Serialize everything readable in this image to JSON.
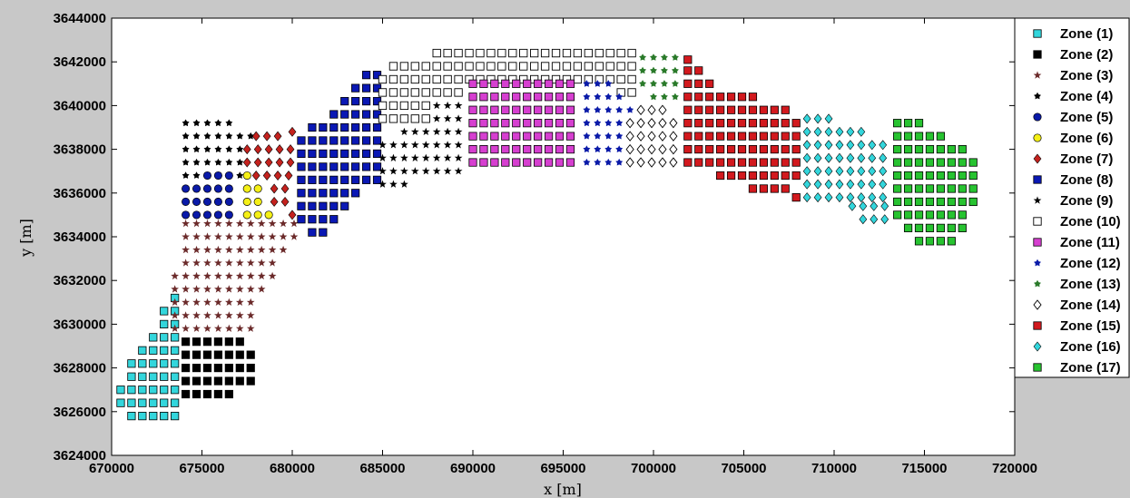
{
  "chart_data": {
    "type": "scatter",
    "title": "",
    "xlabel": "x [m]",
    "ylabel": "y [m]",
    "xlim": [
      670000,
      720000
    ],
    "ylim": [
      3624000,
      3644000
    ],
    "xticks": [
      670000,
      675000,
      680000,
      685000,
      690000,
      695000,
      700000,
      705000,
      710000,
      715000,
      720000
    ],
    "yticks": [
      3624000,
      3626000,
      3628000,
      3630000,
      3632000,
      3634000,
      3636000,
      3638000,
      3640000,
      3642000,
      3644000
    ],
    "grid": false,
    "legend_position": "right",
    "grid_spacing": 600,
    "series": [
      {
        "name": "Zone (1)",
        "marker": "square",
        "color": "#33d6dc",
        "rows": [
          {
            "y": 3625800,
            "x0": 671100,
            "x1": 673500
          },
          {
            "y": 3626400,
            "x0": 670500,
            "x1": 673500
          },
          {
            "y": 3627000,
            "x0": 670500,
            "x1": 673500
          },
          {
            "y": 3627600,
            "x0": 671100,
            "x1": 673500
          },
          {
            "y": 3628200,
            "x0": 671100,
            "x1": 673500
          },
          {
            "y": 3628800,
            "x0": 671700,
            "x1": 673500
          },
          {
            "y": 3629400,
            "x0": 672300,
            "x1": 673500
          },
          {
            "y": 3630000,
            "x0": 672900,
            "x1": 673500
          },
          {
            "y": 3630600,
            "x0": 672900,
            "x1": 673500
          },
          {
            "y": 3631200,
            "x0": 673500,
            "x1": 673500
          }
        ]
      },
      {
        "name": "Zone (2)",
        "marker": "square",
        "color": "#000000",
        "rows": [
          {
            "y": 3626800,
            "x0": 674100,
            "x1": 676500
          },
          {
            "y": 3627400,
            "x0": 674100,
            "x1": 677700
          },
          {
            "y": 3628000,
            "x0": 674100,
            "x1": 677700
          },
          {
            "y": 3628600,
            "x0": 674100,
            "x1": 677700
          },
          {
            "y": 3629200,
            "x0": 674100,
            "x1": 677100
          }
        ]
      },
      {
        "name": "Zone (3)",
        "marker": "star",
        "color": "#6b2a2a",
        "rows": [
          {
            "y": 3629800,
            "x0": 673500,
            "x1": 677700
          },
          {
            "y": 3630400,
            "x0": 673500,
            "x1": 677700
          },
          {
            "y": 3631000,
            "x0": 673500,
            "x1": 677700
          },
          {
            "y": 3631600,
            "x0": 673500,
            "x1": 678300
          },
          {
            "y": 3632200,
            "x0": 673500,
            "x1": 678900
          },
          {
            "y": 3632800,
            "x0": 674100,
            "x1": 678900
          },
          {
            "y": 3633400,
            "x0": 674100,
            "x1": 679500
          },
          {
            "y": 3634000,
            "x0": 674100,
            "x1": 680100
          },
          {
            "y": 3634600,
            "x0": 674100,
            "x1": 680100
          }
        ]
      },
      {
        "name": "Zone (4)",
        "marker": "asterisk",
        "color": "#000000",
        "rows": [
          {
            "y": 3636800,
            "x0": 674100,
            "x1": 677100
          },
          {
            "y": 3637400,
            "x0": 674100,
            "x1": 677100
          },
          {
            "y": 3638000,
            "x0": 674100,
            "x1": 677100
          },
          {
            "y": 3638600,
            "x0": 674100,
            "x1": 677700
          },
          {
            "y": 3639200,
            "x0": 674100,
            "x1": 676500
          }
        ]
      },
      {
        "name": "Zone (5)",
        "marker": "circle",
        "color": "#0a1aa8",
        "rows": [
          {
            "y": 3635000,
            "x0": 674100,
            "x1": 676900
          },
          {
            "y": 3635600,
            "x0": 674100,
            "x1": 676900
          },
          {
            "y": 3636200,
            "x0": 674100,
            "x1": 676900
          },
          {
            "y": 3636800,
            "x0": 675300,
            "x1": 676900
          }
        ]
      },
      {
        "name": "Zone (6)",
        "marker": "circle",
        "color": "#f5f016",
        "rows": [
          {
            "y": 3635000,
            "x0": 677500,
            "x1": 679000
          },
          {
            "y": 3635600,
            "x0": 677500,
            "x1": 678500
          },
          {
            "y": 3636200,
            "x0": 677500,
            "x1": 678500
          },
          {
            "y": 3636800,
            "x0": 677500,
            "x1": 677500
          }
        ]
      },
      {
        "name": "Zone (7)",
        "marker": "diamond",
        "color": "#c4221e",
        "rows": [
          {
            "y": 3635000,
            "x0": 680000,
            "x1": 680000
          },
          {
            "y": 3635600,
            "x0": 679000,
            "x1": 680000
          },
          {
            "y": 3636200,
            "x0": 679000,
            "x1": 680000
          },
          {
            "y": 3636800,
            "x0": 678000,
            "x1": 680000
          },
          {
            "y": 3637400,
            "x0": 677500,
            "x1": 680000
          },
          {
            "y": 3638000,
            "x0": 677500,
            "x1": 680000
          },
          {
            "y": 3638600,
            "x0": 678000,
            "x1": 679500
          },
          {
            "y": 3638800,
            "x0": 680000,
            "x1": 680000
          }
        ]
      },
      {
        "name": "Zone (8)",
        "marker": "square",
        "color": "#0a18b4",
        "rows": [
          {
            "y": 3634200,
            "x0": 681100,
            "x1": 681700
          },
          {
            "y": 3634800,
            "x0": 680500,
            "x1": 682300
          },
          {
            "y": 3635400,
            "x0": 680500,
            "x1": 682900
          },
          {
            "y": 3636000,
            "x0": 680500,
            "x1": 683500
          },
          {
            "y": 3636600,
            "x0": 680500,
            "x1": 684700
          },
          {
            "y": 3637200,
            "x0": 680500,
            "x1": 684700
          },
          {
            "y": 3637800,
            "x0": 680500,
            "x1": 684700
          },
          {
            "y": 3638400,
            "x0": 680500,
            "x1": 684700
          },
          {
            "y": 3639000,
            "x0": 681100,
            "x1": 684700
          },
          {
            "y": 3639600,
            "x0": 682300,
            "x1": 684700
          },
          {
            "y": 3640200,
            "x0": 682900,
            "x1": 684700
          },
          {
            "y": 3640800,
            "x0": 683500,
            "x1": 684700
          },
          {
            "y": 3641400,
            "x0": 684100,
            "x1": 684700
          }
        ]
      },
      {
        "name": "Zone (9)",
        "marker": "star",
        "color": "#000000",
        "rows": [
          {
            "y": 3636400,
            "x0": 685000,
            "x1": 686200
          },
          {
            "y": 3637000,
            "x0": 685000,
            "x1": 689200
          },
          {
            "y": 3637600,
            "x0": 685000,
            "x1": 689200
          },
          {
            "y": 3638200,
            "x0": 685000,
            "x1": 689200
          },
          {
            "y": 3638800,
            "x0": 686200,
            "x1": 689200
          },
          {
            "y": 3639400,
            "x0": 687400,
            "x1": 689200
          },
          {
            "y": 3640000,
            "x0": 688000,
            "x1": 689200
          }
        ]
      },
      {
        "name": "Zone (10)",
        "marker": "square-open",
        "color": "#000000",
        "rows": [
          {
            "y": 3639400,
            "x0": 685000,
            "x1": 687400
          },
          {
            "y": 3640000,
            "x0": 685000,
            "x1": 687400
          },
          {
            "y": 3640600,
            "x0": 685000,
            "x1": 689200
          },
          {
            "y": 3641200,
            "x0": 685000,
            "x1": 698800
          },
          {
            "y": 3641800,
            "x0": 685600,
            "x1": 698800
          },
          {
            "y": 3642400,
            "x0": 688000,
            "x1": 698800
          },
          {
            "y": 3640600,
            "x0": 698200,
            "x1": 698800
          }
        ]
      },
      {
        "name": "Zone (11)",
        "marker": "square",
        "color": "#d63fd0",
        "rows": [
          {
            "y": 3637400,
            "x0": 690000,
            "x1": 695700
          },
          {
            "y": 3638000,
            "x0": 690000,
            "x1": 695700
          },
          {
            "y": 3638600,
            "x0": 690000,
            "x1": 695700
          },
          {
            "y": 3639200,
            "x0": 690000,
            "x1": 695700
          },
          {
            "y": 3639800,
            "x0": 690000,
            "x1": 695700
          },
          {
            "y": 3640400,
            "x0": 690000,
            "x1": 695700
          },
          {
            "y": 3641000,
            "x0": 690000,
            "x1": 695700
          }
        ]
      },
      {
        "name": "Zone (12)",
        "marker": "asterisk",
        "color": "#0a1aa8",
        "rows": [
          {
            "y": 3637400,
            "x0": 696300,
            "x1": 698100
          },
          {
            "y": 3638000,
            "x0": 696300,
            "x1": 698100
          },
          {
            "y": 3638600,
            "x0": 696300,
            "x1": 698100
          },
          {
            "y": 3639200,
            "x0": 696300,
            "x1": 698100
          },
          {
            "y": 3639800,
            "x0": 696300,
            "x1": 698700
          },
          {
            "y": 3640400,
            "x0": 696300,
            "x1": 698100
          },
          {
            "y": 3641000,
            "x0": 696300,
            "x1": 697500
          }
        ]
      },
      {
        "name": "Zone (13)",
        "marker": "asterisk",
        "color": "#2a7a2a",
        "rows": [
          {
            "y": 3640400,
            "x0": 700000,
            "x1": 701200
          },
          {
            "y": 3641000,
            "x0": 699400,
            "x1": 701200
          },
          {
            "y": 3641600,
            "x0": 699400,
            "x1": 701200
          },
          {
            "y": 3642200,
            "x0": 699400,
            "x1": 701200
          }
        ]
      },
      {
        "name": "Zone (14)",
        "marker": "diamond-open",
        "color": "#000000",
        "rows": [
          {
            "y": 3637400,
            "x0": 698700,
            "x1": 701100
          },
          {
            "y": 3638000,
            "x0": 698700,
            "x1": 701100
          },
          {
            "y": 3638600,
            "x0": 698700,
            "x1": 701100
          },
          {
            "y": 3639200,
            "x0": 698700,
            "x1": 701100
          },
          {
            "y": 3639800,
            "x0": 699300,
            "x1": 700500
          }
        ]
      },
      {
        "name": "Zone (15)",
        "marker": "square",
        "color": "#d2191e",
        "rows": [
          {
            "y": 3635800,
            "x0": 707900,
            "x1": 707900
          },
          {
            "y": 3636200,
            "x0": 705500,
            "x1": 707300
          },
          {
            "y": 3636800,
            "x0": 703700,
            "x1": 707900
          },
          {
            "y": 3637400,
            "x0": 701900,
            "x1": 707900
          },
          {
            "y": 3638000,
            "x0": 701900,
            "x1": 707900
          },
          {
            "y": 3638600,
            "x0": 701900,
            "x1": 707900
          },
          {
            "y": 3639200,
            "x0": 701900,
            "x1": 707900
          },
          {
            "y": 3639800,
            "x0": 701900,
            "x1": 707300
          },
          {
            "y": 3640400,
            "x0": 701900,
            "x1": 705500
          },
          {
            "y": 3641000,
            "x0": 701900,
            "x1": 703100
          },
          {
            "y": 3641600,
            "x0": 701900,
            "x1": 702500
          },
          {
            "y": 3642100,
            "x0": 701900,
            "x1": 701900
          }
        ]
      },
      {
        "name": "Zone (16)",
        "marker": "diamond",
        "color": "#33d6dc",
        "rows": [
          {
            "y": 3634800,
            "x0": 711600,
            "x1": 712800
          },
          {
            "y": 3635400,
            "x0": 711000,
            "x1": 712800
          },
          {
            "y": 3635800,
            "x0": 708500,
            "x1": 712800
          },
          {
            "y": 3636400,
            "x0": 708500,
            "x1": 712800
          },
          {
            "y": 3637000,
            "x0": 708500,
            "x1": 712800
          },
          {
            "y": 3637600,
            "x0": 708500,
            "x1": 712800
          },
          {
            "y": 3638200,
            "x0": 708500,
            "x1": 712800
          },
          {
            "y": 3638800,
            "x0": 708500,
            "x1": 711600
          },
          {
            "y": 3639400,
            "x0": 708500,
            "x1": 709700
          }
        ]
      },
      {
        "name": "Zone (17)",
        "marker": "square",
        "color": "#27c330",
        "rows": [
          {
            "y": 3633800,
            "x0": 714700,
            "x1": 716500
          },
          {
            "y": 3634400,
            "x0": 714100,
            "x1": 717100
          },
          {
            "y": 3635000,
            "x0": 713500,
            "x1": 717100
          },
          {
            "y": 3635600,
            "x0": 713500,
            "x1": 717700
          },
          {
            "y": 3636200,
            "x0": 713500,
            "x1": 717700
          },
          {
            "y": 3636800,
            "x0": 713500,
            "x1": 717700
          },
          {
            "y": 3637400,
            "x0": 713500,
            "x1": 717700
          },
          {
            "y": 3638000,
            "x0": 713500,
            "x1": 717100
          },
          {
            "y": 3638600,
            "x0": 713500,
            "x1": 715900
          },
          {
            "y": 3639200,
            "x0": 713500,
            "x1": 714700
          }
        ]
      }
    ]
  }
}
